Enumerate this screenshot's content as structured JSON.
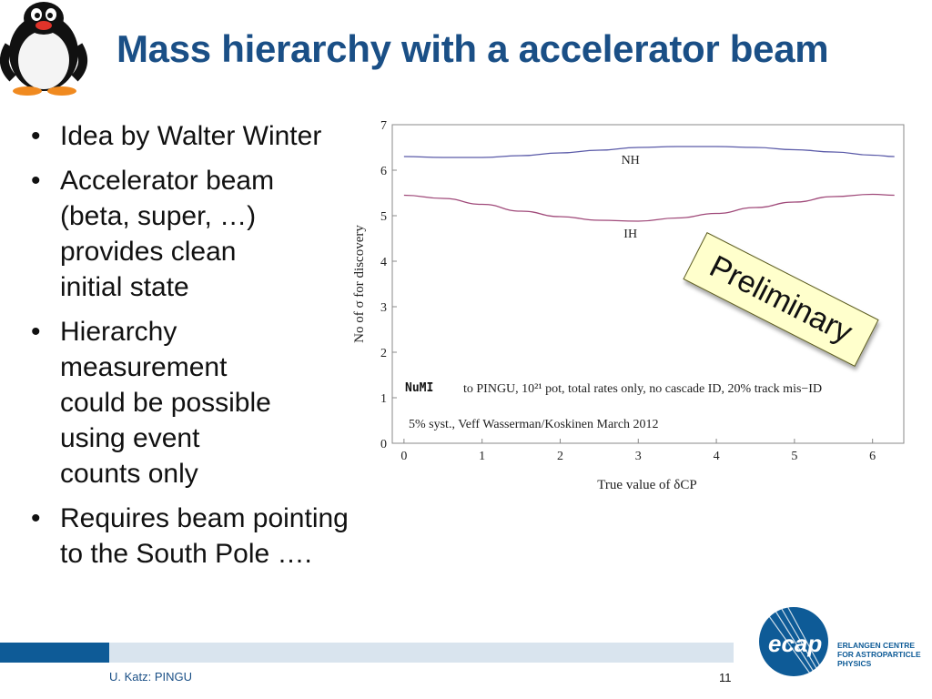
{
  "slide": {
    "title": "Mass hierarchy with a accelerator beam",
    "bullets": [
      {
        "lines": [
          "Idea by Walter Winter"
        ]
      },
      {
        "lines": [
          "Accelerator beam",
          "(beta, super, …)",
          "provides clean",
          "initial state"
        ]
      },
      {
        "lines": [
          "Hierarchy",
          "measurement",
          "could be possible",
          "using event",
          "counts only"
        ]
      },
      {
        "lines": [
          "Requires beam pointing",
          "to the South Pole …."
        ]
      }
    ],
    "stamp": "Preliminary",
    "footer_author": "U. Katz: PINGU",
    "page_number": "11",
    "logo": {
      "name": "ecap",
      "lines": [
        "ERLANGEN CENTRE",
        "FOR ASTROPARTICLE",
        "PHYSICS"
      ],
      "color": "#0e5b97"
    }
  },
  "chart_data": {
    "type": "line",
    "xlabel": "True value of δCP",
    "ylabel": "No of σ for discovery",
    "xlim": [
      -0.15,
      6.4
    ],
    "ylim": [
      0,
      7
    ],
    "xticks": [
      "0",
      "1",
      "2",
      "3",
      "4",
      "5",
      "6"
    ],
    "yticks": [
      "0",
      "1",
      "2",
      "3",
      "4",
      "5",
      "6",
      "7"
    ],
    "annotation_box": "NuMI",
    "annotation_line1": "to PINGU, 10²¹ pot, total rates only, no cascade ID, 20% track mis−ID",
    "annotation_line2": "5% syst., Veff Wasserman/Koskinen March 2012",
    "series": [
      {
        "name": "NH",
        "color": "#5a5aa8",
        "x": [
          0,
          0.5,
          1.0,
          1.5,
          2.0,
          2.5,
          3.0,
          3.5,
          4.0,
          4.5,
          5.0,
          5.5,
          6.0,
          6.28
        ],
        "y": [
          6.3,
          6.28,
          6.28,
          6.32,
          6.38,
          6.44,
          6.5,
          6.52,
          6.52,
          6.5,
          6.45,
          6.4,
          6.33,
          6.3
        ]
      },
      {
        "name": "IH",
        "color": "#a04a7a",
        "x": [
          0,
          0.5,
          1.0,
          1.5,
          2.0,
          2.5,
          3.0,
          3.5,
          4.0,
          4.5,
          5.0,
          5.5,
          6.0,
          6.28
        ],
        "y": [
          5.45,
          5.38,
          5.25,
          5.1,
          4.98,
          4.9,
          4.88,
          4.95,
          5.05,
          5.18,
          5.3,
          5.42,
          5.47,
          5.45
        ]
      }
    ]
  }
}
